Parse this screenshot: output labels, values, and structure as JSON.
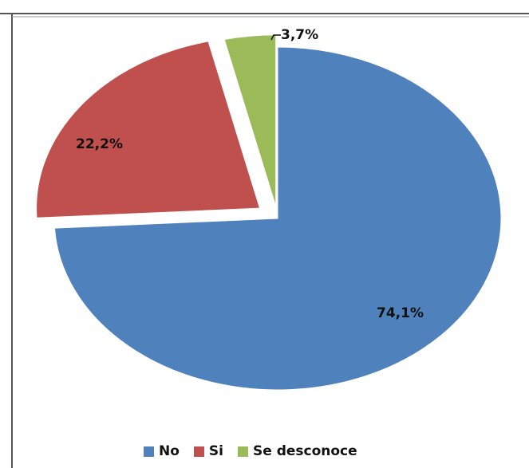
{
  "chart_data": {
    "type": "pie",
    "title": "",
    "slices": [
      {
        "label": "No",
        "value": 74.1,
        "value_label": "74,1%",
        "color": "#4F81BD",
        "exploded": false
      },
      {
        "label": "Si",
        "value": 22.2,
        "value_label": "22,2%",
        "color": "#C0504D",
        "exploded": true
      },
      {
        "label": "Se desconoce",
        "value": 3.7,
        "value_label": "3,7%",
        "color": "#9BBB59",
        "exploded": true
      }
    ],
    "legend_position": "bottom"
  },
  "frame": {
    "border_color": "#555555"
  }
}
